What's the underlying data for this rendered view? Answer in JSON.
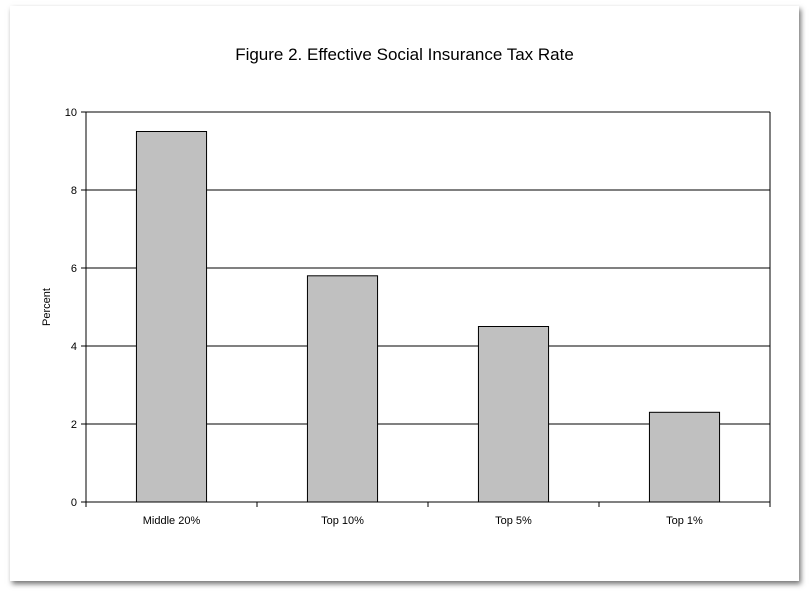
{
  "chart_data": {
    "type": "bar",
    "title": "Figure 2. Effective Social Insurance Tax Rate",
    "xlabel": "",
    "ylabel": "Percent",
    "categories": [
      "Middle 20%",
      "Top 10%",
      "Top 5%",
      "Top 1%"
    ],
    "values": [
      9.5,
      5.8,
      4.5,
      2.3
    ],
    "ylim": [
      0,
      10
    ],
    "yticks": [
      0,
      2,
      4,
      6,
      8,
      10
    ],
    "grid": true,
    "legend": "none",
    "colors": {
      "bar_fill": "#c0c0c0",
      "bar_stroke": "#000000",
      "gridline": "#000000",
      "background": "#ffffff"
    }
  }
}
